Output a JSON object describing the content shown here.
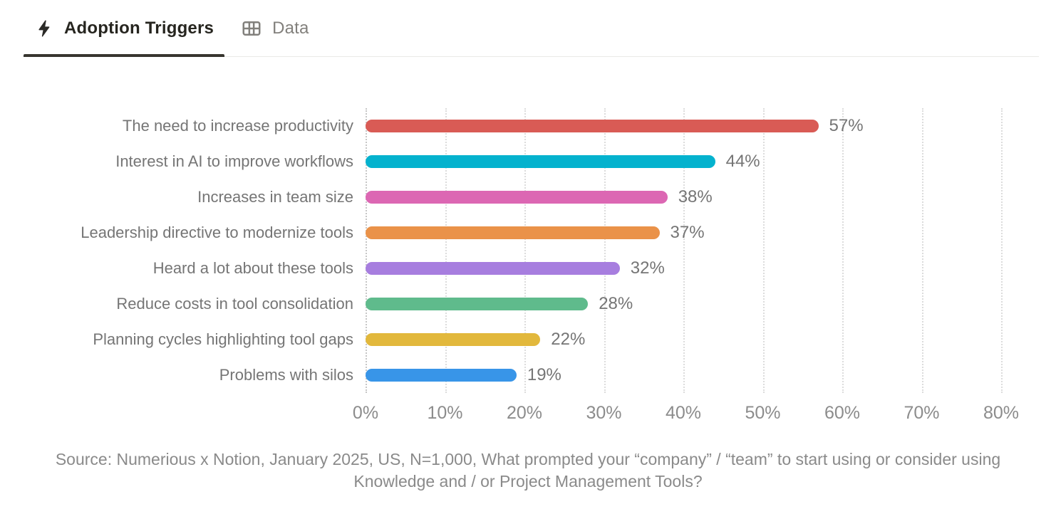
{
  "tabs": [
    {
      "label": "Adoption Triggers",
      "icon": "lightning-icon",
      "active": true
    },
    {
      "label": "Data",
      "icon": "table-icon",
      "active": false
    }
  ],
  "chart_data": {
    "type": "bar",
    "orientation": "horizontal",
    "title": "",
    "xlabel": "",
    "ylabel": "",
    "categories": [
      "The need to increase productivity",
      "Interest in AI to improve workflows",
      "Increases in team size",
      "Leadership directive to modernize tools",
      "Heard a lot about these tools",
      "Reduce costs in tool consolidation",
      "Planning cycles highlighting tool gaps",
      "Problems with silos"
    ],
    "values": [
      57,
      44,
      38,
      37,
      32,
      28,
      22,
      19
    ],
    "value_labels": [
      "57%",
      "44%",
      "38%",
      "37%",
      "32%",
      "28%",
      "22%",
      "19%"
    ],
    "bar_colors": [
      "#D95B55",
      "#04B2CE",
      "#DC67B3",
      "#EA9249",
      "#A77EDF",
      "#5FBB8C",
      "#E2B83C",
      "#3895E8"
    ],
    "x_ticks": [
      "0%",
      "10%",
      "20%",
      "30%",
      "40%",
      "50%",
      "60%",
      "70%",
      "80%"
    ],
    "xlim": [
      0,
      80
    ],
    "grid": "dotted-vertical",
    "legend": "none",
    "source_note": "Source: Numerious x Notion, January 2025, US, N=1,000, What prompted your “company” / “team” to start using or consider using Knowledge and / or Project Management Tools?"
  }
}
